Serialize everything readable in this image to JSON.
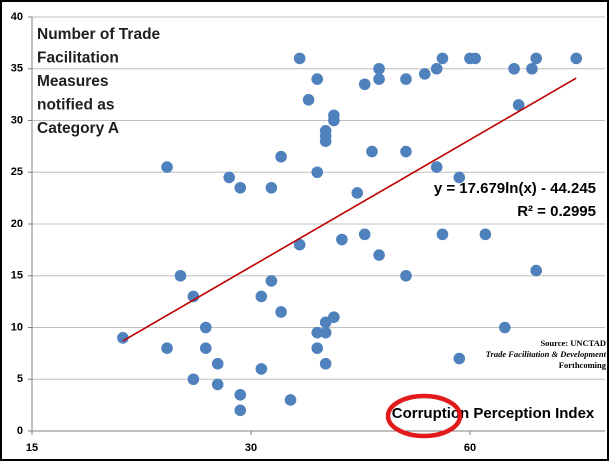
{
  "chart_data": {
    "type": "scatter",
    "title_lines": [
      "Number of Trade",
      "Facilitation",
      "Measures",
      "notified as",
      "Category A"
    ],
    "x_label": "Corruption Perception Index",
    "equation": "y = 17.679ln(x) - 44.245",
    "r_squared": "R² = 0.2995",
    "source_lines": [
      "Source: UNCTAD",
      "Trade Facilitation & Development",
      "Forthcoming"
    ],
    "color": "#4f81bd",
    "trend_color": "#c00000",
    "log_x": true,
    "grid": true,
    "xlim": [
      15,
      92
    ],
    "xticks": [
      15,
      30,
      60
    ],
    "ylim": [
      0,
      40
    ],
    "yticks": [
      0,
      5,
      10,
      15,
      20,
      25,
      30,
      35,
      40
    ],
    "x": [
      20,
      23,
      23,
      24,
      25,
      25,
      26,
      26,
      27,
      27,
      28,
      29,
      29,
      29,
      31,
      31,
      32,
      32,
      33,
      33,
      34,
      35,
      35,
      36,
      37,
      37,
      37,
      37,
      38,
      38,
      38,
      38,
      38,
      38,
      39,
      39,
      39,
      40,
      42,
      43,
      43,
      44,
      45,
      45,
      45,
      49,
      49,
      49,
      52,
      54,
      54,
      55,
      55,
      58,
      58,
      60,
      61,
      63,
      67,
      69,
      70,
      73,
      74,
      74,
      84
    ],
    "y": [
      9,
      25.5,
      8,
      15,
      13,
      5,
      10,
      8,
      6.5,
      4.5,
      24.5,
      23.5,
      3.5,
      2,
      13,
      6,
      23.5,
      14.5,
      26.5,
      11.5,
      3,
      36,
      18,
      32,
      34,
      25,
      8,
      9.5,
      29,
      28,
      28.5,
      10.5,
      9.5,
      6.5,
      30.5,
      30,
      11,
      18.5,
      23,
      33.5,
      19,
      27,
      34,
      35,
      17,
      34,
      27,
      15,
      34.5,
      35,
      25.5,
      36,
      19,
      24.5,
      7,
      36,
      36,
      19,
      10,
      35,
      31.5,
      35,
      36,
      15.5,
      36
    ],
    "trendline": {
      "x": [
        20,
        84
      ],
      "y": [
        8.7,
        34.1
      ]
    }
  }
}
